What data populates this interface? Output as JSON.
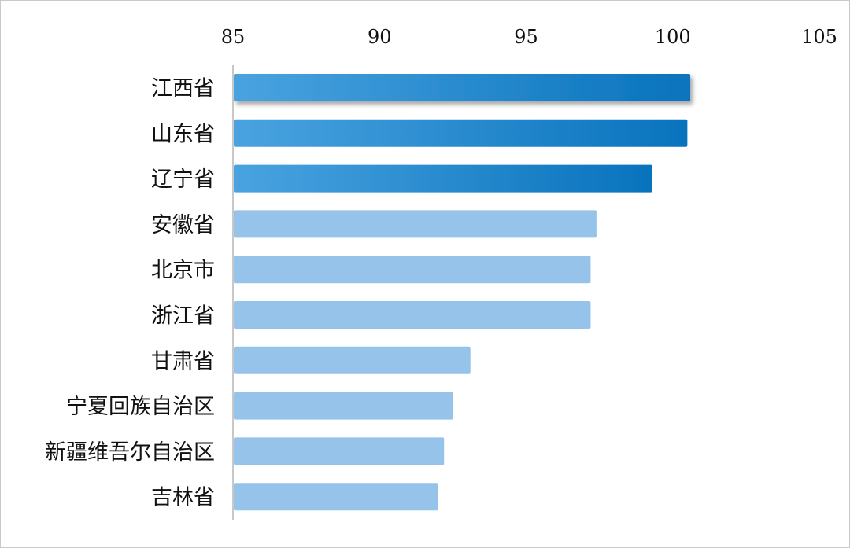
{
  "chart_data": {
    "type": "bar",
    "orientation": "horizontal",
    "categories": [
      "江西省",
      "山东省",
      "辽宁省",
      "安徽省",
      "北京市",
      "浙江省",
      "甘肃省",
      "宁夏回族自治区",
      "新疆维吾尔自治区",
      "吉林省"
    ],
    "values": [
      100.6,
      100.5,
      99.3,
      97.4,
      97.2,
      97.2,
      93.1,
      92.5,
      92.2,
      92.0
    ],
    "highlight_count": 3,
    "x_ticks": [
      "85",
      "90",
      "95",
      "100",
      "105"
    ],
    "xlim": [
      85,
      105
    ],
    "x_axis_position": "top",
    "grid": false,
    "legend": false,
    "colors": {
      "highlight_start": "#4aa3e0",
      "highlight_end": "#0873bd",
      "normal": "#95c3ea",
      "axis": "#c8c8c8"
    }
  }
}
